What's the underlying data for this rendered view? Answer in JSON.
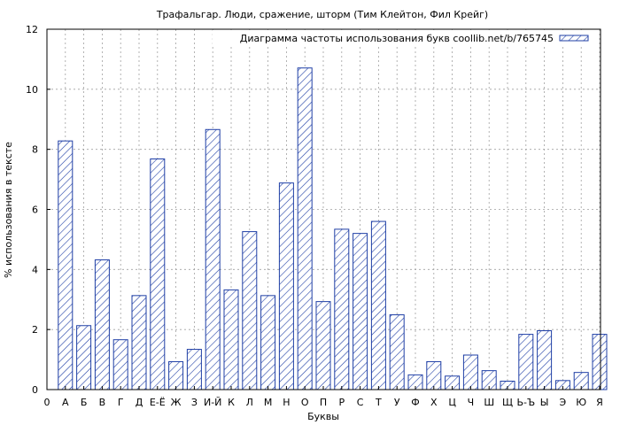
{
  "chart_data": {
    "type": "bar",
    "title": "Трафальгар. Люди, сражение, шторм (Тим Клейтон, Фил Крейг)",
    "xlabel": "Буквы",
    "ylabel": "% использования в тексте",
    "legend": "Диаграмма частоты использования букв coollib.net/b/765745",
    "legend_position": "top-right",
    "grid": true,
    "ylim": [
      0,
      12
    ],
    "yticks": [
      "0",
      "2",
      "4",
      "6",
      "8",
      "10",
      "12"
    ],
    "x_origin_label": "0",
    "categories": [
      "А",
      "Б",
      "В",
      "Г",
      "Д",
      "Е-Ё",
      "Ж",
      "З",
      "И-Й",
      "К",
      "Л",
      "М",
      "Н",
      "О",
      "П",
      "Р",
      "С",
      "Т",
      "У",
      "Ф",
      "Х",
      "Ц",
      "Ч",
      "Ш",
      "Щ",
      "Ь-Ъ",
      "Ы",
      "Э",
      "Ю",
      "Я"
    ],
    "values": [
      8.28,
      2.13,
      4.32,
      1.66,
      3.13,
      7.68,
      0.93,
      1.34,
      8.66,
      3.32,
      5.26,
      3.13,
      6.88,
      10.71,
      2.93,
      5.34,
      5.2,
      5.6,
      2.49,
      0.49,
      0.93,
      0.45,
      1.15,
      0.63,
      0.28,
      1.84,
      1.96,
      0.3,
      0.57,
      1.84
    ],
    "colors": {
      "bar_stroke": "#1f3fa6",
      "hatch": "#1f3fa6"
    }
  }
}
